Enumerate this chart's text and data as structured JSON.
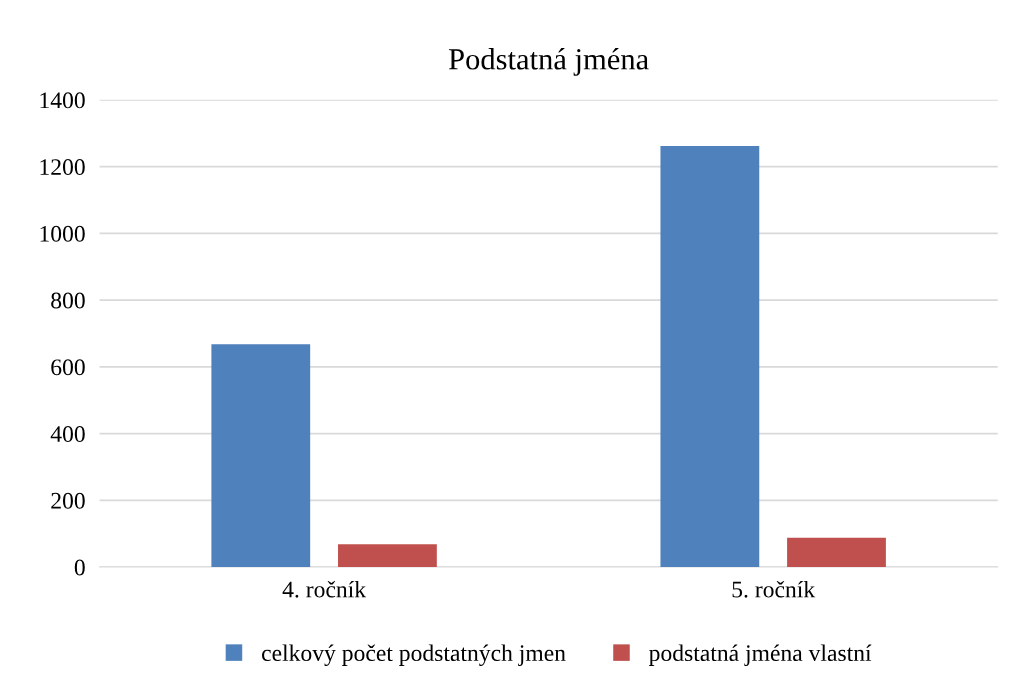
{
  "chart_data": {
    "type": "bar",
    "title": "Podstatná jména",
    "categories": [
      "4. ročník",
      "5. ročník"
    ],
    "series": [
      {
        "name": "celkový počet podstatných jmen",
        "color": "#4f81bd",
        "values": [
          668,
          1262
        ]
      },
      {
        "name": "podstatná jména vlastní",
        "color": "#c0504d",
        "values": [
          68,
          88
        ]
      }
    ],
    "ylim": [
      0,
      1400
    ],
    "yticks": [
      0,
      200,
      400,
      600,
      800,
      1000,
      1200,
      1400
    ],
    "grid": "y",
    "legend": "bottom"
  }
}
